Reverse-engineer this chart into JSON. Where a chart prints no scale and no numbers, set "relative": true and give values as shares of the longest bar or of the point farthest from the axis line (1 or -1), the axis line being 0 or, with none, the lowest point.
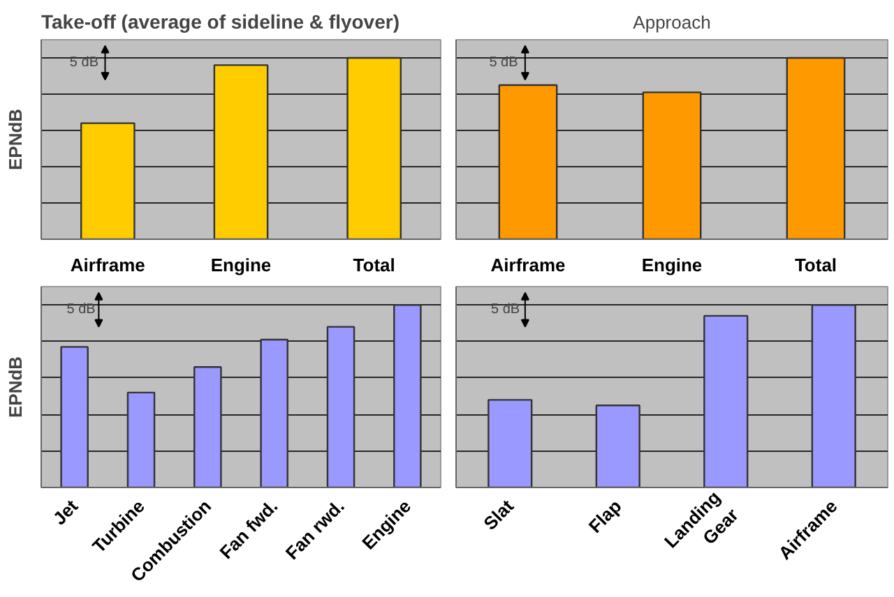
{
  "chart_data": [
    {
      "type": "bar",
      "title": "Take-off (average of sideline & flyover)",
      "ylabel": "EPNdB",
      "categories": [
        "Airframe",
        "Engine",
        "Total"
      ],
      "values": [
        0.64,
        0.96,
        1.0
      ],
      "color": "#ffcc00",
      "relative": true,
      "grid": "y",
      "annotations": [
        "5 dB"
      ]
    },
    {
      "type": "bar",
      "title": "Approach",
      "categories": [
        "Airframe",
        "Engine",
        "Total"
      ],
      "values": [
        0.85,
        0.81,
        1.0
      ],
      "color": "#ff9900",
      "relative": true,
      "grid": "y",
      "annotations": [
        "5 dB"
      ]
    },
    {
      "type": "bar",
      "ylabel": "EPNdB",
      "categories": [
        "Jet",
        "Turbine",
        "Combustion",
        "Fan fwd.",
        "Fan rwd.",
        "Engine"
      ],
      "values": [
        0.77,
        0.52,
        0.66,
        0.81,
        0.88,
        1.0
      ],
      "color": "#9999ff",
      "relative": true,
      "grid": "y",
      "annotations": [
        "5 dB"
      ]
    },
    {
      "type": "bar",
      "categories": [
        "Slat",
        "Flap",
        "Landing\nGear",
        "Airframe"
      ],
      "values": [
        0.48,
        0.45,
        0.94,
        1.0
      ],
      "color": "#9999ff",
      "relative": true,
      "grid": "y",
      "annotations": [
        "5 dB"
      ]
    }
  ]
}
